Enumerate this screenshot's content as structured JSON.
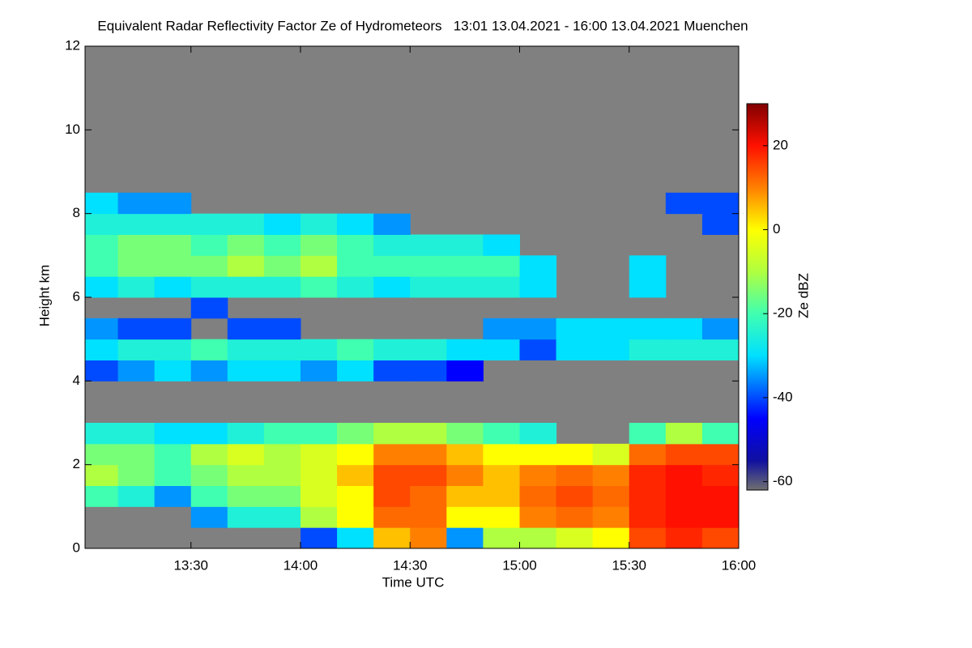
{
  "chart_data": {
    "type": "heatmap",
    "title": "Equivalent Radar Reflectivity Factor Ze of Hydrometeors   13:01 13.04.2021 - 16:00 13.04.2021 Muenchen",
    "x_label": "Time UTC",
    "y_label": "Height km",
    "colorbar_label": "Ze dBZ",
    "xlim": [
      781,
      960
    ],
    "xticks": [
      {
        "value": 810,
        "label": "13:30"
      },
      {
        "value": 840,
        "label": "14:00"
      },
      {
        "value": 870,
        "label": "14:30"
      },
      {
        "value": 900,
        "label": "15:00"
      },
      {
        "value": 930,
        "label": "15:30"
      },
      {
        "value": 960,
        "label": "16:00"
      }
    ],
    "ylim": [
      0,
      12
    ],
    "yticks": [
      0,
      2,
      4,
      6,
      8,
      10,
      12
    ],
    "zlim": [
      -62,
      30
    ],
    "zticks": [
      -60,
      -40,
      -20,
      0,
      20
    ],
    "nodata_color": "#808080",
    "colormap": [
      {
        "value": -62,
        "color": "#707070"
      },
      {
        "value": -55,
        "color": "#1010a0"
      },
      {
        "value": -45,
        "color": "#0000ff"
      },
      {
        "value": -30,
        "color": "#00e0ff"
      },
      {
        "value": -20,
        "color": "#40ffb0"
      },
      {
        "value": -10,
        "color": "#b0ff40"
      },
      {
        "value": 0,
        "color": "#ffff00"
      },
      {
        "value": 10,
        "color": "#ff8000"
      },
      {
        "value": 20,
        "color": "#ff1000"
      },
      {
        "value": 30,
        "color": "#800000"
      }
    ],
    "x_bins": [
      781,
      790,
      800,
      810,
      820,
      830,
      840,
      850,
      860,
      870,
      880,
      890,
      900,
      910,
      920,
      930,
      940,
      950,
      960
    ],
    "y_bins": [
      0,
      0.5,
      1,
      1.5,
      2,
      2.5,
      3,
      3.5,
      4,
      4.5,
      5,
      5.5,
      6,
      6.5,
      7,
      7.5,
      8,
      8.5,
      9,
      9.5,
      10,
      10.5,
      11,
      11.5,
      12
    ],
    "z": [
      [
        null,
        null,
        null,
        null,
        null,
        null,
        -40,
        -30,
        5,
        10,
        -35,
        -10,
        -10,
        -5,
        0,
        15,
        18,
        15
      ],
      [
        null,
        null,
        null,
        -35,
        -25,
        -25,
        -10,
        0,
        12,
        12,
        0,
        0,
        10,
        12,
        10,
        18,
        20,
        20
      ],
      [
        -20,
        -25,
        -35,
        -20,
        -15,
        -15,
        -5,
        0,
        15,
        12,
        5,
        5,
        12,
        15,
        12,
        18,
        20,
        20
      ],
      [
        -10,
        -15,
        -20,
        -15,
        -10,
        -10,
        -5,
        5,
        15,
        15,
        10,
        5,
        10,
        12,
        10,
        18,
        20,
        18
      ],
      [
        -15,
        -15,
        -20,
        -10,
        -5,
        -10,
        -5,
        0,
        10,
        10,
        5,
        0,
        0,
        0,
        -5,
        12,
        15,
        15
      ],
      [
        -25,
        -25,
        -30,
        -30,
        -25,
        -20,
        -20,
        -15,
        -10,
        -10,
        -15,
        -20,
        -25,
        null,
        null,
        -20,
        -10,
        -20
      ],
      [
        null,
        null,
        null,
        null,
        null,
        null,
        null,
        null,
        null,
        null,
        null,
        null,
        null,
        null,
        null,
        null,
        null,
        null
      ],
      [
        null,
        null,
        null,
        null,
        null,
        null,
        null,
        null,
        null,
        null,
        null,
        null,
        null,
        null,
        null,
        null,
        null,
        null
      ],
      [
        -40,
        -35,
        -30,
        -35,
        -30,
        -30,
        -35,
        -30,
        -40,
        -40,
        -45,
        null,
        null,
        null,
        null,
        null,
        null,
        null
      ],
      [
        -30,
        -25,
        -25,
        -20,
        -25,
        -25,
        -25,
        -20,
        -25,
        -25,
        -30,
        -30,
        -40,
        -30,
        -30,
        -25,
        -25,
        -25
      ],
      [
        -35,
        -40,
        -40,
        null,
        -40,
        -40,
        null,
        null,
        null,
        null,
        null,
        -35,
        -35,
        -30,
        -30,
        -30,
        -30,
        -35
      ],
      [
        null,
        null,
        null,
        -40,
        null,
        null,
        null,
        null,
        null,
        null,
        null,
        null,
        null,
        null,
        null,
        null,
        null,
        null
      ],
      [
        -30,
        -25,
        -30,
        -25,
        -25,
        -25,
        -20,
        -25,
        -30,
        -25,
        -25,
        -25,
        -30,
        null,
        null,
        -30,
        null,
        null
      ],
      [
        -20,
        -15,
        -15,
        -15,
        -10,
        -15,
        -10,
        -20,
        -20,
        -20,
        -20,
        -20,
        -30,
        null,
        null,
        -30,
        null,
        null
      ],
      [
        -20,
        -15,
        -15,
        -20,
        -15,
        -20,
        -15,
        -20,
        -25,
        -25,
        -25,
        -30,
        null,
        null,
        null,
        null,
        null,
        null
      ],
      [
        -25,
        -25,
        -25,
        -25,
        -25,
        -30,
        -25,
        -30,
        -35,
        null,
        null,
        null,
        null,
        null,
        null,
        null,
        null,
        -40
      ],
      [
        -30,
        -35,
        -35,
        null,
        null,
        null,
        null,
        null,
        null,
        null,
        null,
        null,
        null,
        null,
        null,
        null,
        -40,
        -40
      ],
      [
        null,
        null,
        null,
        null,
        null,
        null,
        null,
        null,
        null,
        null,
        null,
        null,
        null,
        null,
        null,
        null,
        null,
        null
      ],
      [
        null,
        null,
        null,
        null,
        null,
        null,
        null,
        null,
        null,
        null,
        null,
        null,
        null,
        null,
        null,
        null,
        null,
        null
      ],
      [
        null,
        null,
        null,
        null,
        null,
        null,
        null,
        null,
        null,
        null,
        null,
        null,
        null,
        null,
        null,
        null,
        null,
        null
      ],
      [
        null,
        null,
        null,
        null,
        null,
        null,
        null,
        null,
        null,
        null,
        null,
        null,
        null,
        null,
        null,
        null,
        null,
        null
      ],
      [
        null,
        null,
        null,
        null,
        null,
        null,
        null,
        null,
        null,
        null,
        null,
        null,
        null,
        null,
        null,
        null,
        null,
        null
      ],
      [
        null,
        null,
        null,
        null,
        null,
        null,
        null,
        null,
        null,
        null,
        null,
        null,
        null,
        null,
        null,
        null,
        null,
        null
      ],
      [
        null,
        null,
        null,
        null,
        null,
        null,
        null,
        null,
        null,
        null,
        null,
        null,
        null,
        null,
        null,
        null,
        null,
        null
      ]
    ]
  }
}
